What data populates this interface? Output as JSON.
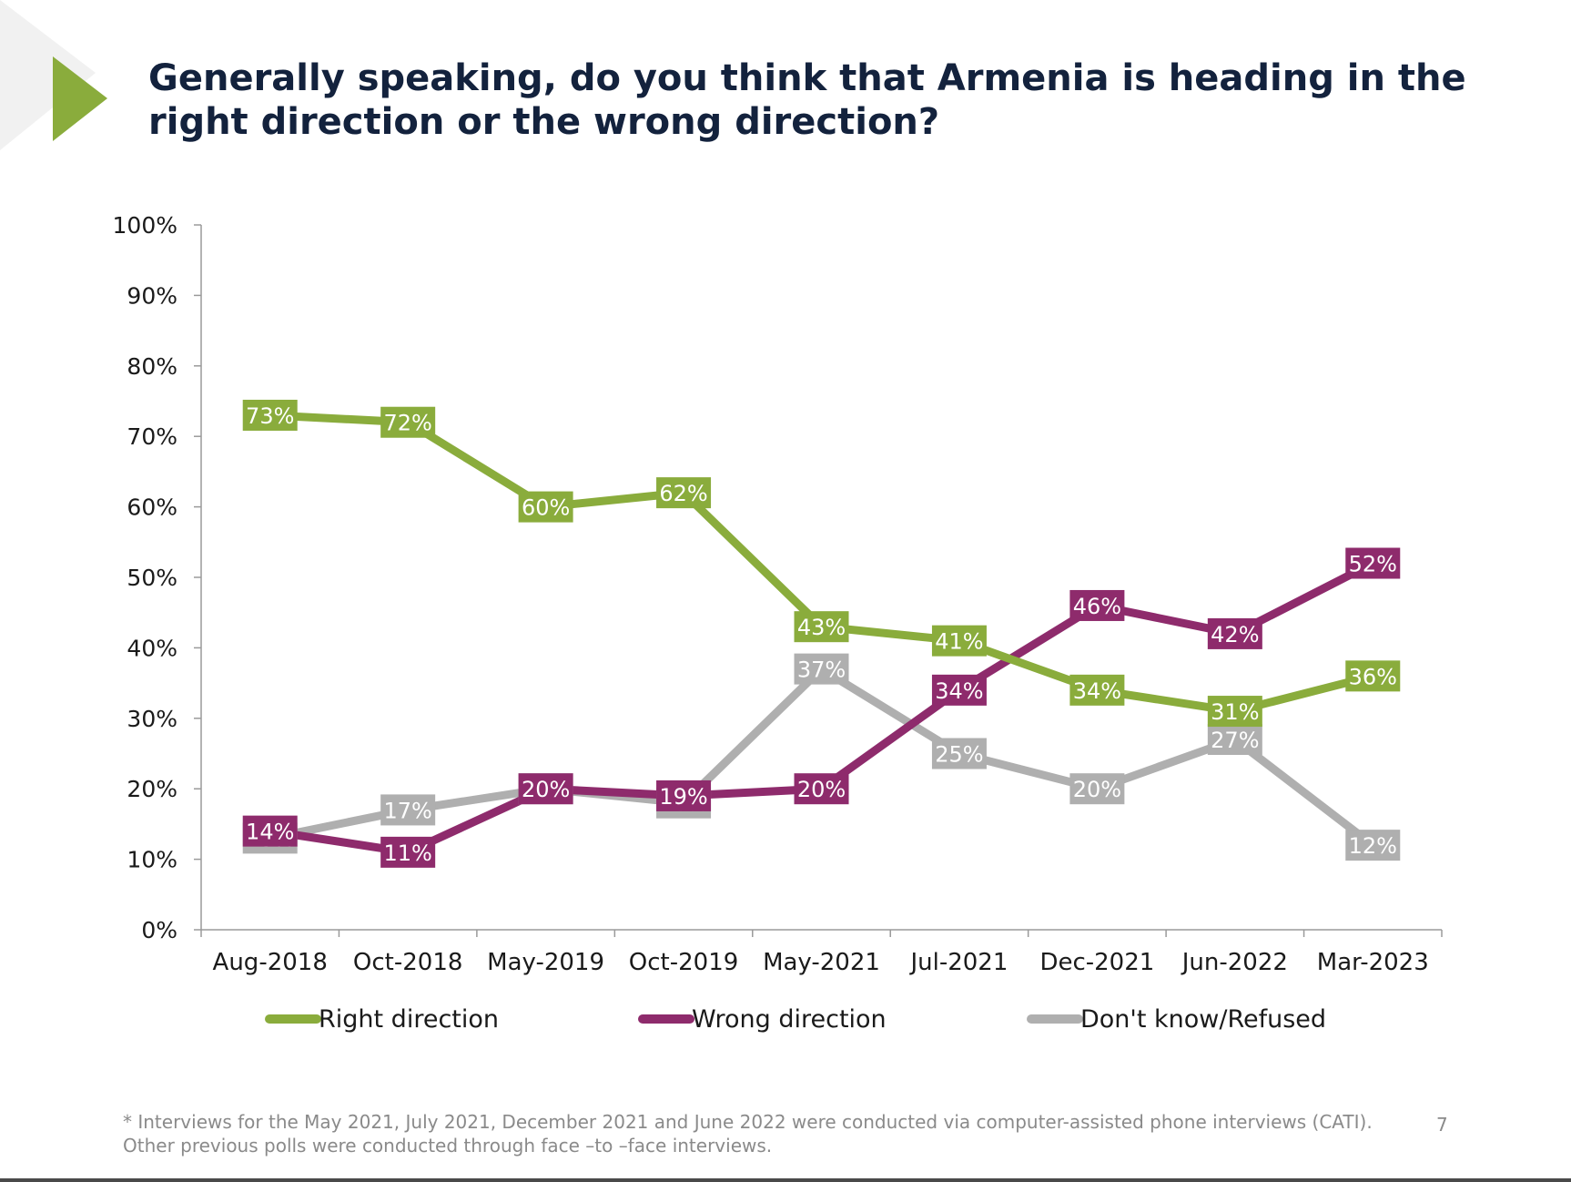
{
  "slide": {
    "title": "Generally speaking, do you think that Armenia is heading in the right direction or the wrong direction?",
    "footnote": "* Interviews for the May 2021, July 2021, December 2021 and June 2022 were conducted via computer-assisted phone interviews (CATI). Other previous polls were conducted through face –to –face interviews.",
    "page_number": "7",
    "accent_color": "#8aac3c"
  },
  "chart_data": {
    "type": "line",
    "categories": [
      "Aug-2018",
      "Oct-2018",
      "May-2019",
      "Oct-2019",
      "May-2021",
      "Jul-2021",
      "Dec-2021",
      "Jun-2022",
      "Mar-2023"
    ],
    "ylim": [
      0,
      100
    ],
    "yticks": [
      "0%",
      "10%",
      "20%",
      "30%",
      "40%",
      "50%",
      "60%",
      "70%",
      "80%",
      "90%",
      "100%"
    ],
    "grid": false,
    "legend_position": "bottom",
    "series": [
      {
        "name": "Right direction",
        "color": "#8aac3c",
        "values": [
          73,
          72,
          60,
          62,
          43,
          41,
          34,
          31,
          36
        ],
        "labels": [
          "73%",
          "72%",
          "60%",
          "62%",
          "43%",
          "41%",
          "34%",
          "31%",
          "36%"
        ]
      },
      {
        "name": "Wrong direction",
        "color": "#8e2b6c",
        "values": [
          14,
          11,
          20,
          19,
          20,
          34,
          46,
          42,
          52
        ],
        "labels": [
          "14%",
          "11%",
          "20%",
          "19%",
          "20%",
          "34%",
          "46%",
          "42%",
          "52%"
        ]
      },
      {
        "name": "Don't know/Refused",
        "color": "#afafaf",
        "values": [
          13,
          17,
          20,
          18,
          37,
          25,
          20,
          27,
          12
        ],
        "labels": [
          "13%",
          "17%",
          "20%",
          "18%",
          "37%",
          "25%",
          "20%",
          "27%",
          "12%"
        ]
      }
    ]
  }
}
